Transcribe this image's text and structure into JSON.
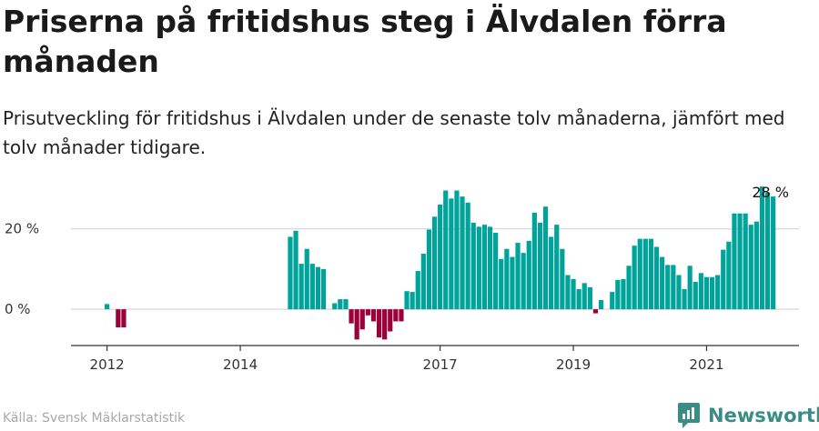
{
  "title": "Priserna på fritidshus steg i Älvdalen förra månaden",
  "subtitle": "Prisutveckling för fritidshus i Älvdalen under de senaste tolv månaderna, jämfört med tolv månader tidigare.",
  "source": "Källa: Svensk Mäklarstatistik",
  "brand": {
    "name": "Newsworthy",
    "icon": "newsworthy-logo-icon"
  },
  "colors": {
    "positive": "#00a39a",
    "negative": "#9b0039",
    "grid": "#dddddd",
    "axis": "#333333",
    "brand": "#3a8c86"
  },
  "chart_data": {
    "type": "bar",
    "value_unit": "%",
    "ylim": [
      -9,
      33
    ],
    "y_ticks": [
      0,
      20
    ],
    "y_tick_labels": [
      "0 %",
      "20 %"
    ],
    "x_ticks": [
      {
        "value": "2012-01",
        "label": "2012"
      },
      {
        "value": "2014-01",
        "label": "2014"
      },
      {
        "value": "2017-01",
        "label": "2017"
      },
      {
        "value": "2019-01",
        "label": "2019"
      },
      {
        "value": "2021-01",
        "label": "2021"
      }
    ],
    "grid": true,
    "series": [
      {
        "values": [
          {
            "x": "2012-01",
            "y": 1.3
          },
          {
            "x": "2012-03",
            "y": -4.5
          },
          {
            "x": "2012-04",
            "y": -4.5
          },
          {
            "x": "2014-10",
            "y": 18
          },
          {
            "x": "2014-11",
            "y": 19.5
          },
          {
            "x": "2014-12",
            "y": 11.3
          },
          {
            "x": "2015-01",
            "y": 15
          },
          {
            "x": "2015-02",
            "y": 11.3
          },
          {
            "x": "2015-03",
            "y": 10.5
          },
          {
            "x": "2015-04",
            "y": 10
          },
          {
            "x": "2015-06",
            "y": 1.5
          },
          {
            "x": "2015-07",
            "y": 2.5
          },
          {
            "x": "2015-08",
            "y": 2.5
          },
          {
            "x": "2015-09",
            "y": -3.5
          },
          {
            "x": "2015-10",
            "y": -7.5
          },
          {
            "x": "2015-11",
            "y": -5
          },
          {
            "x": "2015-12",
            "y": -1.5
          },
          {
            "x": "2016-01",
            "y": -3
          },
          {
            "x": "2016-02",
            "y": -7
          },
          {
            "x": "2016-03",
            "y": -7.5
          },
          {
            "x": "2016-04",
            "y": -5.5
          },
          {
            "x": "2016-05",
            "y": -3
          },
          {
            "x": "2016-06",
            "y": -3
          },
          {
            "x": "2016-07",
            "y": 4.5
          },
          {
            "x": "2016-08",
            "y": 4.3
          },
          {
            "x": "2016-09",
            "y": 9.5
          },
          {
            "x": "2016-10",
            "y": 13.8
          },
          {
            "x": "2016-11",
            "y": 19.8
          },
          {
            "x": "2016-12",
            "y": 23
          },
          {
            "x": "2017-01",
            "y": 26
          },
          {
            "x": "2017-02",
            "y": 29.5
          },
          {
            "x": "2017-03",
            "y": 27.5
          },
          {
            "x": "2017-04",
            "y": 29.5
          },
          {
            "x": "2017-05",
            "y": 28
          },
          {
            "x": "2017-06",
            "y": 26.5
          },
          {
            "x": "2017-07",
            "y": 21.5
          },
          {
            "x": "2017-08",
            "y": 20.5
          },
          {
            "x": "2017-09",
            "y": 21
          },
          {
            "x": "2017-10",
            "y": 20.5
          },
          {
            "x": "2017-11",
            "y": 19
          },
          {
            "x": "2017-12",
            "y": 12.5
          },
          {
            "x": "2018-01",
            "y": 15
          },
          {
            "x": "2018-02",
            "y": 13
          },
          {
            "x": "2018-03",
            "y": 16.5
          },
          {
            "x": "2018-04",
            "y": 14
          },
          {
            "x": "2018-05",
            "y": 17
          },
          {
            "x": "2018-06",
            "y": 24
          },
          {
            "x": "2018-07",
            "y": 21.5
          },
          {
            "x": "2018-08",
            "y": 25.5
          },
          {
            "x": "2018-09",
            "y": 18
          },
          {
            "x": "2018-10",
            "y": 21
          },
          {
            "x": "2018-11",
            "y": 15
          },
          {
            "x": "2018-12",
            "y": 8.5
          },
          {
            "x": "2019-01",
            "y": 7.5
          },
          {
            "x": "2019-02",
            "y": 5
          },
          {
            "x": "2019-03",
            "y": 6.5
          },
          {
            "x": "2019-04",
            "y": 5.5
          },
          {
            "x": "2019-05",
            "y": -1
          },
          {
            "x": "2019-06",
            "y": 2.3
          },
          {
            "x": "2019-08",
            "y": 4.3
          },
          {
            "x": "2019-09",
            "y": 7.3
          },
          {
            "x": "2019-10",
            "y": 7.5
          },
          {
            "x": "2019-11",
            "y": 10.8
          },
          {
            "x": "2019-12",
            "y": 15.8
          },
          {
            "x": "2020-01",
            "y": 17.5
          },
          {
            "x": "2020-02",
            "y": 17.5
          },
          {
            "x": "2020-03",
            "y": 17.5
          },
          {
            "x": "2020-04",
            "y": 15.5
          },
          {
            "x": "2020-05",
            "y": 13
          },
          {
            "x": "2020-06",
            "y": 11
          },
          {
            "x": "2020-07",
            "y": 11
          },
          {
            "x": "2020-08",
            "y": 8.5
          },
          {
            "x": "2020-09",
            "y": 5
          },
          {
            "x": "2020-10",
            "y": 10.8
          },
          {
            "x": "2020-11",
            "y": 6.8
          },
          {
            "x": "2020-12",
            "y": 9
          },
          {
            "x": "2021-01",
            "y": 8
          },
          {
            "x": "2021-02",
            "y": 8
          },
          {
            "x": "2021-03",
            "y": 8.5
          },
          {
            "x": "2021-04",
            "y": 14.8
          },
          {
            "x": "2021-05",
            "y": 16.8
          },
          {
            "x": "2021-06",
            "y": 23.8
          },
          {
            "x": "2021-07",
            "y": 23.8
          },
          {
            "x": "2021-08",
            "y": 23.8
          },
          {
            "x": "2021-09",
            "y": 21
          },
          {
            "x": "2021-10",
            "y": 21.8
          },
          {
            "x": "2021-11",
            "y": 30.5
          },
          {
            "x": "2021-12",
            "y": 29
          },
          {
            "x": "2022-01",
            "y": 28
          }
        ]
      }
    ],
    "annotations": [
      {
        "x": "2022-01",
        "text": "28 %"
      }
    ]
  }
}
